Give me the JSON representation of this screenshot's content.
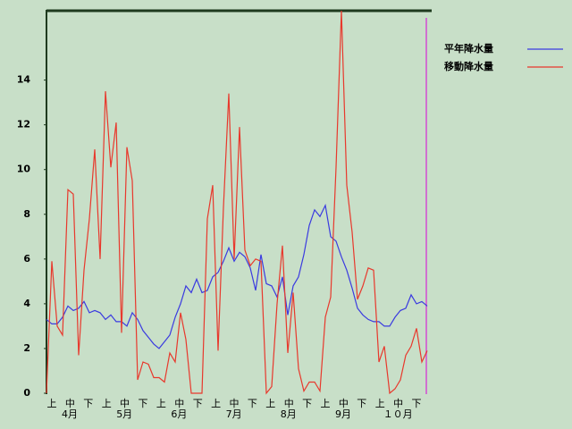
{
  "chart_data": {
    "type": "line",
    "dekads": [
      "上",
      "中",
      "下",
      "上",
      "中",
      "下",
      "上",
      "中",
      "下",
      "上",
      "中",
      "下",
      "上",
      "中",
      "下",
      "上",
      "中",
      "下",
      "上",
      "中",
      "下"
    ],
    "months": [
      "4月",
      "5月",
      "6月",
      "7月",
      "8月",
      "9月",
      "１０月"
    ],
    "ylim": [
      0,
      17.1
    ],
    "yticks": [
      0,
      2,
      4,
      6,
      8,
      10,
      12,
      14
    ],
    "series": [
      {
        "name": "平年降水量",
        "color": "#3a3ae0",
        "values": [
          3.3,
          3.1,
          3.1,
          3.4,
          3.9,
          3.7,
          3.8,
          4.1,
          3.6,
          3.7,
          3.6,
          3.3,
          3.5,
          3.2,
          3.2,
          3.0,
          3.6,
          3.3,
          2.8,
          2.5,
          2.2,
          2.0,
          2.3,
          2.6,
          3.4,
          4.0,
          4.8,
          4.5,
          5.1,
          4.5,
          4.6,
          5.2,
          5.4,
          5.9,
          6.5,
          5.9,
          6.3,
          6.1,
          5.6,
          4.6,
          6.2,
          4.9,
          4.8,
          4.3,
          5.2,
          3.5,
          4.8,
          5.2,
          6.2,
          7.5,
          8.2,
          7.9,
          8.4,
          7.0,
          6.8,
          6.1,
          5.5,
          4.7,
          3.8,
          3.5,
          3.3,
          3.2,
          3.2,
          3.0,
          3.0,
          3.4,
          3.7,
          3.8,
          4.4,
          4.0,
          4.1,
          3.9
        ]
      },
      {
        "name": "移動降水量",
        "color": "#e8382c",
        "values": [
          0,
          5.9,
          3.0,
          2.6,
          9.1,
          8.9,
          1.7,
          5.5,
          7.8,
          10.9,
          6.0,
          13.5,
          10.1,
          12.1,
          2.7,
          11.0,
          9.5,
          0.6,
          1.4,
          1.3,
          0.7,
          0.7,
          0.5,
          1.8,
          1.4,
          3.6,
          2.4,
          0,
          0,
          0,
          7.8,
          9.3,
          1.9,
          8.3,
          13.4,
          6.0,
          11.9,
          6.4,
          5.7,
          6.0,
          5.9,
          0,
          0.3,
          4.0,
          6.6,
          1.8,
          4.5,
          1.1,
          0.1,
          0.5,
          0.5,
          0.1,
          3.4,
          4.3,
          10.1,
          17.1,
          9.3,
          7.2,
          4.2,
          4.8,
          5.6,
          5.5,
          1.4,
          2.1,
          0.0,
          0.2,
          0.6,
          1.7,
          2.1,
          2.9,
          1.4,
          1.9
        ]
      }
    ]
  }
}
